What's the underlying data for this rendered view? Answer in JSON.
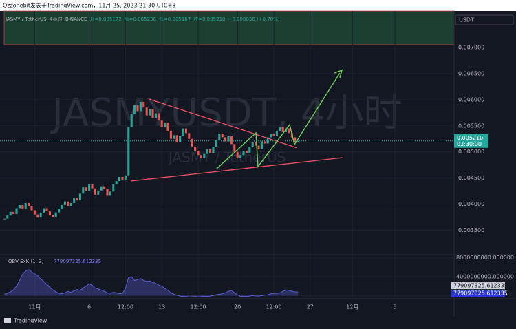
{
  "header": "Qzzonebit发表于TradingView.com，11月 25, 2023 21:30 UTC+8",
  "footer": "TradingView",
  "chart_data": {
    "type": "candlestick",
    "title": "JASMY / TetherUS, 4小时, BINANCE",
    "legend": [
      "开=0.005172",
      "高=0.005236",
      "低=0.005167",
      "收=0.005210",
      "+0.000036 (+0.70%)"
    ],
    "watermark": "JASMYUSDT, 4小时",
    "watermark_sub": "JASMY / TetherUS",
    "currency": "USDT",
    "last_price_label": "0.005210",
    "countdown": "02:30:00",
    "up_color": "#26a69a",
    "down_color": "#ef5350",
    "x": [
      0,
      1,
      2,
      3,
      4,
      5,
      6,
      7,
      8,
      9,
      10,
      11,
      12,
      13,
      14,
      15,
      16,
      17,
      18,
      19,
      20,
      21,
      22,
      23,
      24,
      25,
      26,
      27,
      28,
      29,
      30,
      31,
      32,
      33,
      34,
      35,
      36,
      37,
      38,
      39,
      40,
      41,
      42,
      43,
      44,
      45,
      46,
      47,
      48,
      49,
      50,
      51,
      52,
      53,
      54,
      55,
      56,
      57,
      58,
      59,
      60,
      61,
      62,
      63,
      64,
      65,
      66,
      67,
      68,
      69,
      70,
      71,
      72,
      73,
      74,
      75,
      76,
      77,
      78,
      79,
      80,
      81,
      82,
      83,
      84,
      85,
      86,
      87,
      88,
      89,
      90,
      91,
      92,
      93,
      94,
      95,
      96,
      97
    ],
    "close": [
      0.00372,
      0.00378,
      0.00385,
      0.00381,
      0.00392,
      0.00398,
      0.0039,
      0.00402,
      0.00396,
      0.00388,
      0.0038,
      0.00374,
      0.00383,
      0.00392,
      0.00386,
      0.00379,
      0.00375,
      0.00384,
      0.00391,
      0.00398,
      0.00405,
      0.00396,
      0.00402,
      0.00411,
      0.00407,
      0.0042,
      0.00432,
      0.00425,
      0.00438,
      0.0043,
      0.00418,
      0.00426,
      0.00434,
      0.00429,
      0.00416,
      0.00424,
      0.00438,
      0.00444,
      0.00452,
      0.00447,
      0.00455,
      0.00548,
      0.00572,
      0.0059,
      0.00578,
      0.00596,
      0.00585,
      0.0057,
      0.00582,
      0.00565,
      0.00574,
      0.0056,
      0.00548,
      0.00556,
      0.0054,
      0.00525,
      0.00532,
      0.00518,
      0.0053,
      0.00545,
      0.00536,
      0.00525,
      0.0051,
      0.00502,
      0.00494,
      0.00488,
      0.00496,
      0.00505,
      0.00498,
      0.0051,
      0.00522,
      0.00535,
      0.00528,
      0.0052,
      0.0053,
      0.00515,
      0.005,
      0.00488,
      0.00494,
      0.00502,
      0.00498,
      0.0051,
      0.00518,
      0.00512,
      0.00505,
      0.0052,
      0.00516,
      0.00528,
      0.00535,
      0.0053,
      0.0054,
      0.00548,
      0.00538,
      0.00545,
      0.00536,
      0.00528,
      0.00518,
      0.00521
    ],
    "xlim": [
      -1,
      149
    ],
    "xticks": [
      {
        "value": 10,
        "label": "11月"
      },
      {
        "value": 28,
        "label": "6"
      },
      {
        "value": 40,
        "label": "12:00"
      },
      {
        "value": 52,
        "label": "13"
      },
      {
        "value": 64,
        "label": "12:00"
      },
      {
        "value": 77,
        "label": "20"
      },
      {
        "value": 89,
        "label": "12:00"
      },
      {
        "value": 101,
        "label": "27"
      },
      {
        "value": 115,
        "label": "12月"
      },
      {
        "value": 129,
        "label": "5"
      }
    ],
    "ylim": [
      0.00303,
      0.0077
    ],
    "yticks": [
      {
        "value": 0.0035,
        "label": "0.003500"
      },
      {
        "value": 0.004,
        "label": "0.004000"
      },
      {
        "value": 0.0045,
        "label": "0.004500"
      },
      {
        "value": 0.005,
        "label": "0.005000"
      },
      {
        "value": 0.0055,
        "label": "0.005500"
      },
      {
        "value": 0.006,
        "label": "0.006000"
      },
      {
        "value": 0.0065,
        "label": "0.006500"
      },
      {
        "value": 0.007,
        "label": "0.007000"
      }
    ],
    "grid": true,
    "obv": {
      "title": "OBV ExK (1, 3)",
      "color": "#5b5fd6",
      "values": [
        300000000.0,
        500000000.0,
        800000000.0,
        1200000000.0,
        2000000000.0,
        3200000000.0,
        4500000000.0,
        5200000000.0,
        5500000000.0,
        5000000000.0,
        4600000000.0,
        4200000000.0,
        3500000000.0,
        3000000000.0,
        2400000000.0,
        1800000000.0,
        1200000000.0,
        800000000.0,
        500000000.0,
        400000000.0,
        600000000.0,
        900000000.0,
        700000000.0,
        1000000000.0,
        1300000000.0,
        1100000000.0,
        1600000000.0,
        2000000000.0,
        2500000000.0,
        2200000000.0,
        1600000000.0,
        1400000000.0,
        1200000000.0,
        900000000.0,
        600000000.0,
        500000000.0,
        700000000.0,
        600000000.0,
        400000000.0,
        500000000.0,
        1500000000.0,
        3800000000.0,
        4000000000.0,
        3200000000.0,
        3400000000.0,
        3600000000.0,
        3200000000.0,
        3000000000.0,
        3100000000.0,
        2800000000.0,
        2600000000.0,
        2200000000.0,
        2000000000.0,
        1500000000.0,
        1100000000.0,
        600000000.0,
        300000000.0,
        100000000.0,
        -100000000.0,
        -200000000.0,
        -200000000.0,
        -300000000.0,
        -250000000.0,
        -200000000.0,
        -300000000.0,
        -200000000.0,
        -100000000.0,
        -200000000.0,
        -100000000.0,
        0,
        200000000.0,
        300000000.0,
        400000000.0,
        600000000.0,
        900000000.0,
        1100000000.0,
        600000000.0,
        200000000.0,
        -200000000.0,
        -100000000.0,
        -200000000.0,
        -100000000.0,
        0,
        -100000000.0,
        -100000000.0,
        0,
        100000000.0,
        200000000.0,
        400000000.0,
        500000000.0,
        500000000.0,
        600000000.0,
        900000000.0,
        1200000000.0,
        1100000000.0,
        900000000.0,
        800000000.0,
        779097325.612335
      ],
      "ylim": [
        -375000000,
        8375000000
      ],
      "yticks": [
        {
          "value": 0,
          "label": "0.000000"
        },
        {
          "value": 4000000000,
          "label": "4000000000.000000"
        },
        {
          "value": 8000000000,
          "label": "8000000000.000000"
        }
      ]
    }
  }
}
